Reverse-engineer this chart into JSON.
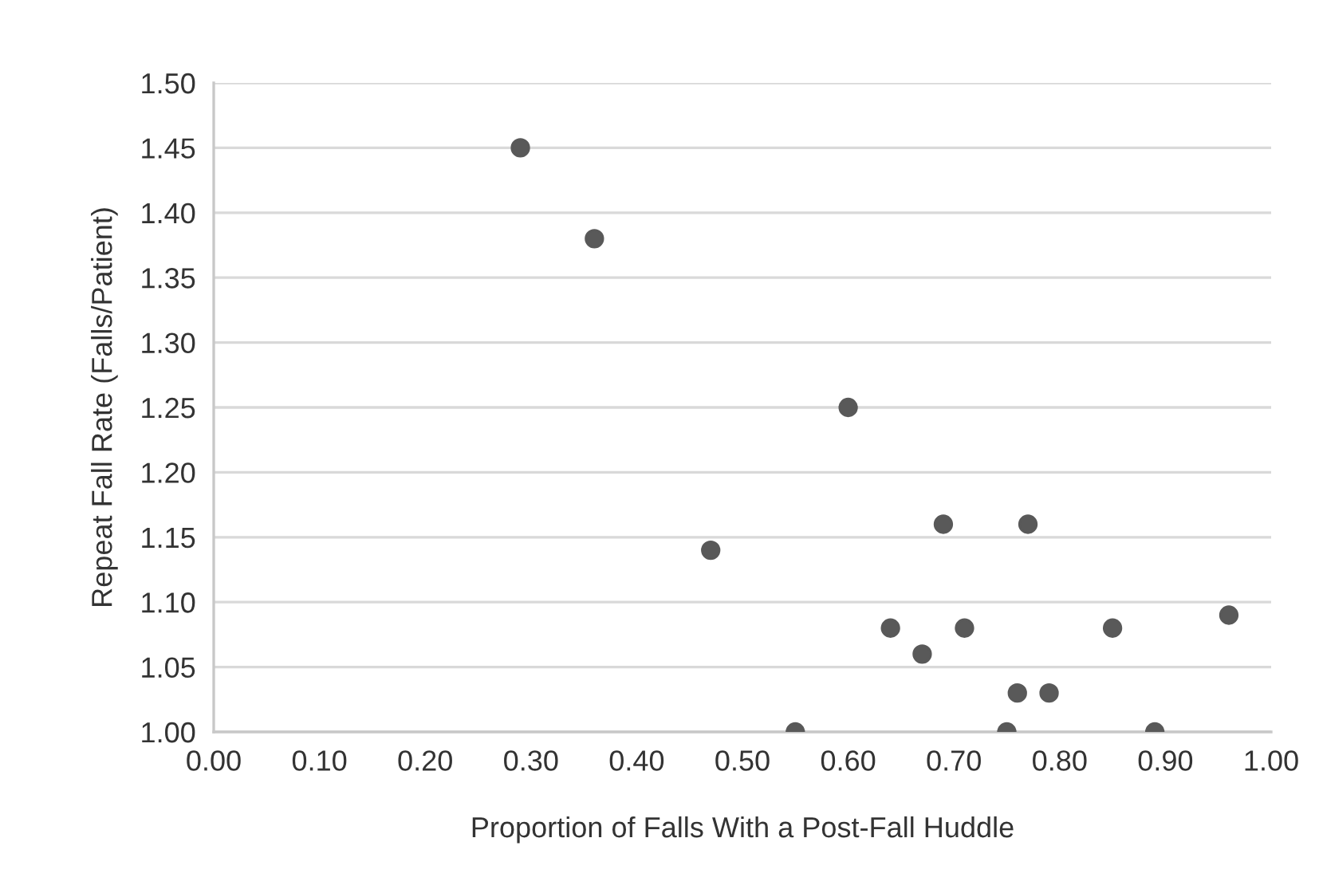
{
  "chart_data": {
    "type": "scatter",
    "xlabel": "Proportion of Falls With a Post-Fall Huddle",
    "ylabel": "Repeat Fall Rate (Falls/Patient)",
    "x": [
      0.29,
      0.36,
      0.6,
      0.47,
      0.69,
      0.77,
      0.64,
      0.67,
      0.71,
      0.85,
      0.96,
      0.76,
      0.79,
      0.55,
      0.75,
      0.89
    ],
    "series": [
      {
        "color": "#595959",
        "values": [
          1.45,
          1.38,
          1.25,
          1.14,
          1.16,
          1.16,
          1.08,
          1.06,
          1.08,
          1.08,
          1.09,
          1.03,
          1.03,
          1.0,
          1.0,
          1.0
        ]
      }
    ],
    "xlim": [
      0,
      1
    ],
    "xticks": [
      {
        "value": 0,
        "label": "0.00"
      },
      {
        "value": 0.1,
        "label": "0.10"
      },
      {
        "value": 0.2,
        "label": "0.20"
      },
      {
        "value": 0.3,
        "label": "0.30"
      },
      {
        "value": 0.4,
        "label": "0.40"
      },
      {
        "value": 0.5,
        "label": "0.50"
      },
      {
        "value": 0.6,
        "label": "0.60"
      },
      {
        "value": 0.7,
        "label": "0.70"
      },
      {
        "value": 0.8,
        "label": "0.80"
      },
      {
        "value": 0.9,
        "label": "0.90"
      },
      {
        "value": 1,
        "label": "1.00"
      }
    ],
    "ylim": [
      1,
      1.5
    ],
    "yticks": [
      {
        "value": 1,
        "label": "1.00"
      },
      {
        "value": 1.05,
        "label": "1.05"
      },
      {
        "value": 1.1,
        "label": "1.10"
      },
      {
        "value": 1.15,
        "label": "1.15"
      },
      {
        "value": 1.2,
        "label": "1.20"
      },
      {
        "value": 1.25,
        "label": "1.25"
      },
      {
        "value": 1.3,
        "label": "1.30"
      },
      {
        "value": 1.35,
        "label": "1.35"
      },
      {
        "value": 1.4,
        "label": "1.40"
      },
      {
        "value": 1.45,
        "label": "1.45"
      },
      {
        "value": 1.5,
        "label": "1.50"
      }
    ],
    "grid": "y",
    "marker": "circle"
  }
}
